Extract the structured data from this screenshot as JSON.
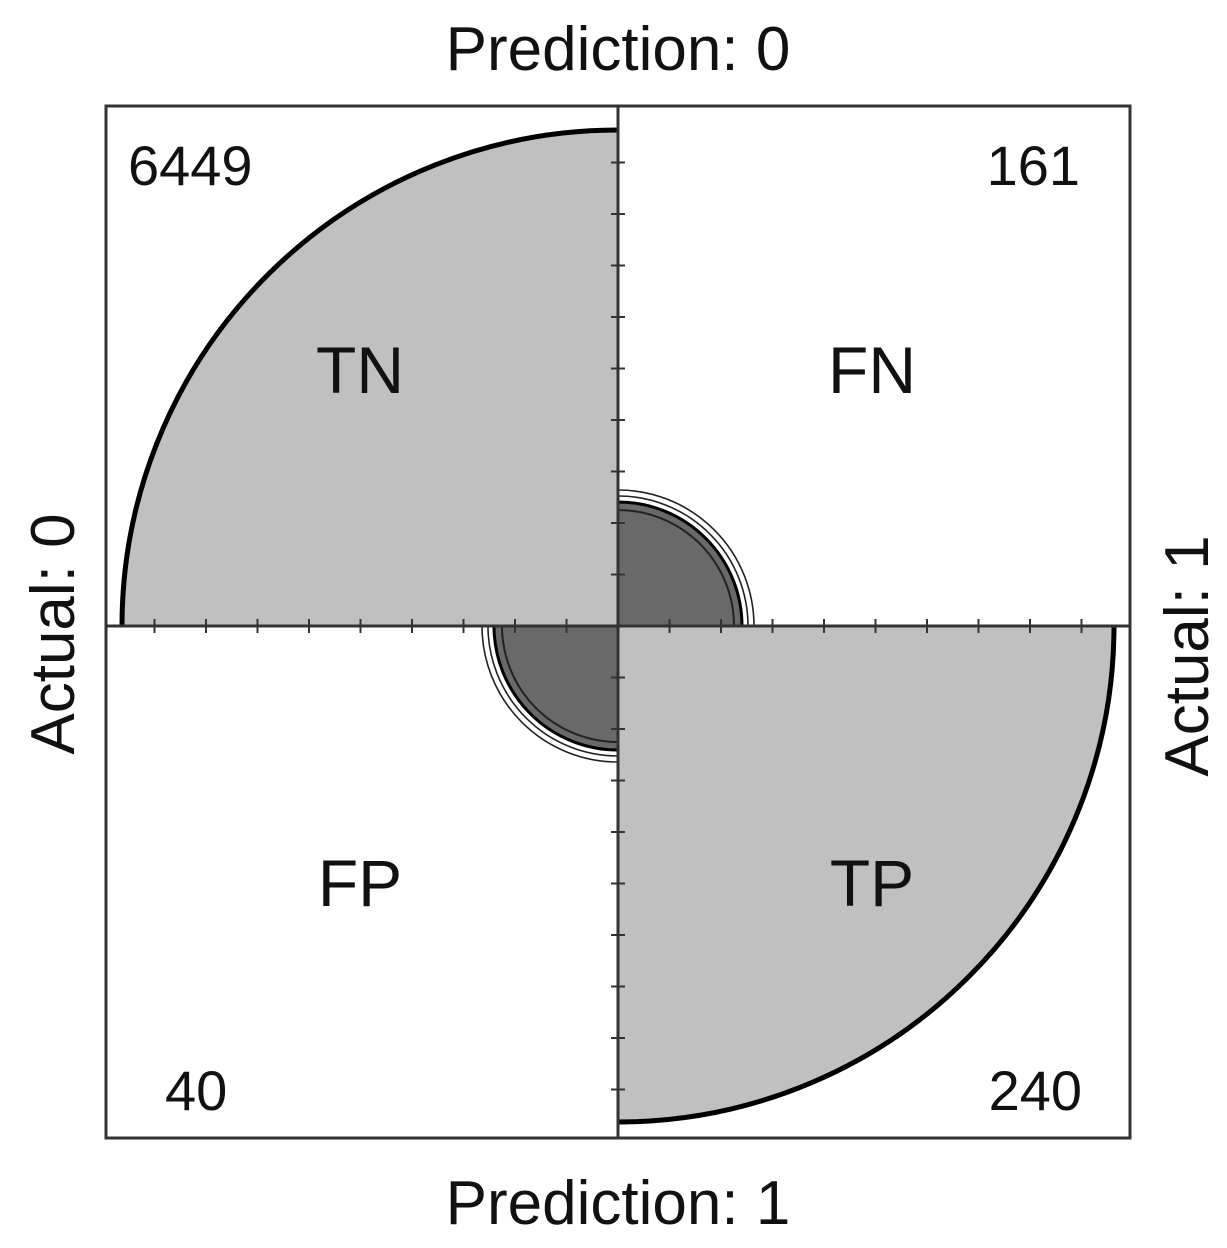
{
  "chart_data": {
    "type": "fourfold",
    "top_label": "Prediction: 0",
    "bottom_label": "Prediction: 1",
    "left_label": "Actual: 0",
    "right_label": "Actual: 1",
    "cells": [
      {
        "label": "TN",
        "count": "6449",
        "value": 6449,
        "quadrant": "top-left",
        "fill": "#c0c0c0"
      },
      {
        "label": "FN",
        "count": "161",
        "value": 161,
        "quadrant": "top-right",
        "fill": "#696969"
      },
      {
        "label": "FP",
        "count": "40",
        "value": 40,
        "quadrant": "bottom-left",
        "fill": "#696969"
      },
      {
        "label": "TP",
        "count": "240",
        "value": 240,
        "quadrant": "bottom-right",
        "fill": "#c0c0c0"
      }
    ],
    "colors": {
      "large_sector": "#c0c0c0",
      "small_sector": "#696969",
      "outline": "#000000",
      "background": "#ffffff"
    }
  }
}
